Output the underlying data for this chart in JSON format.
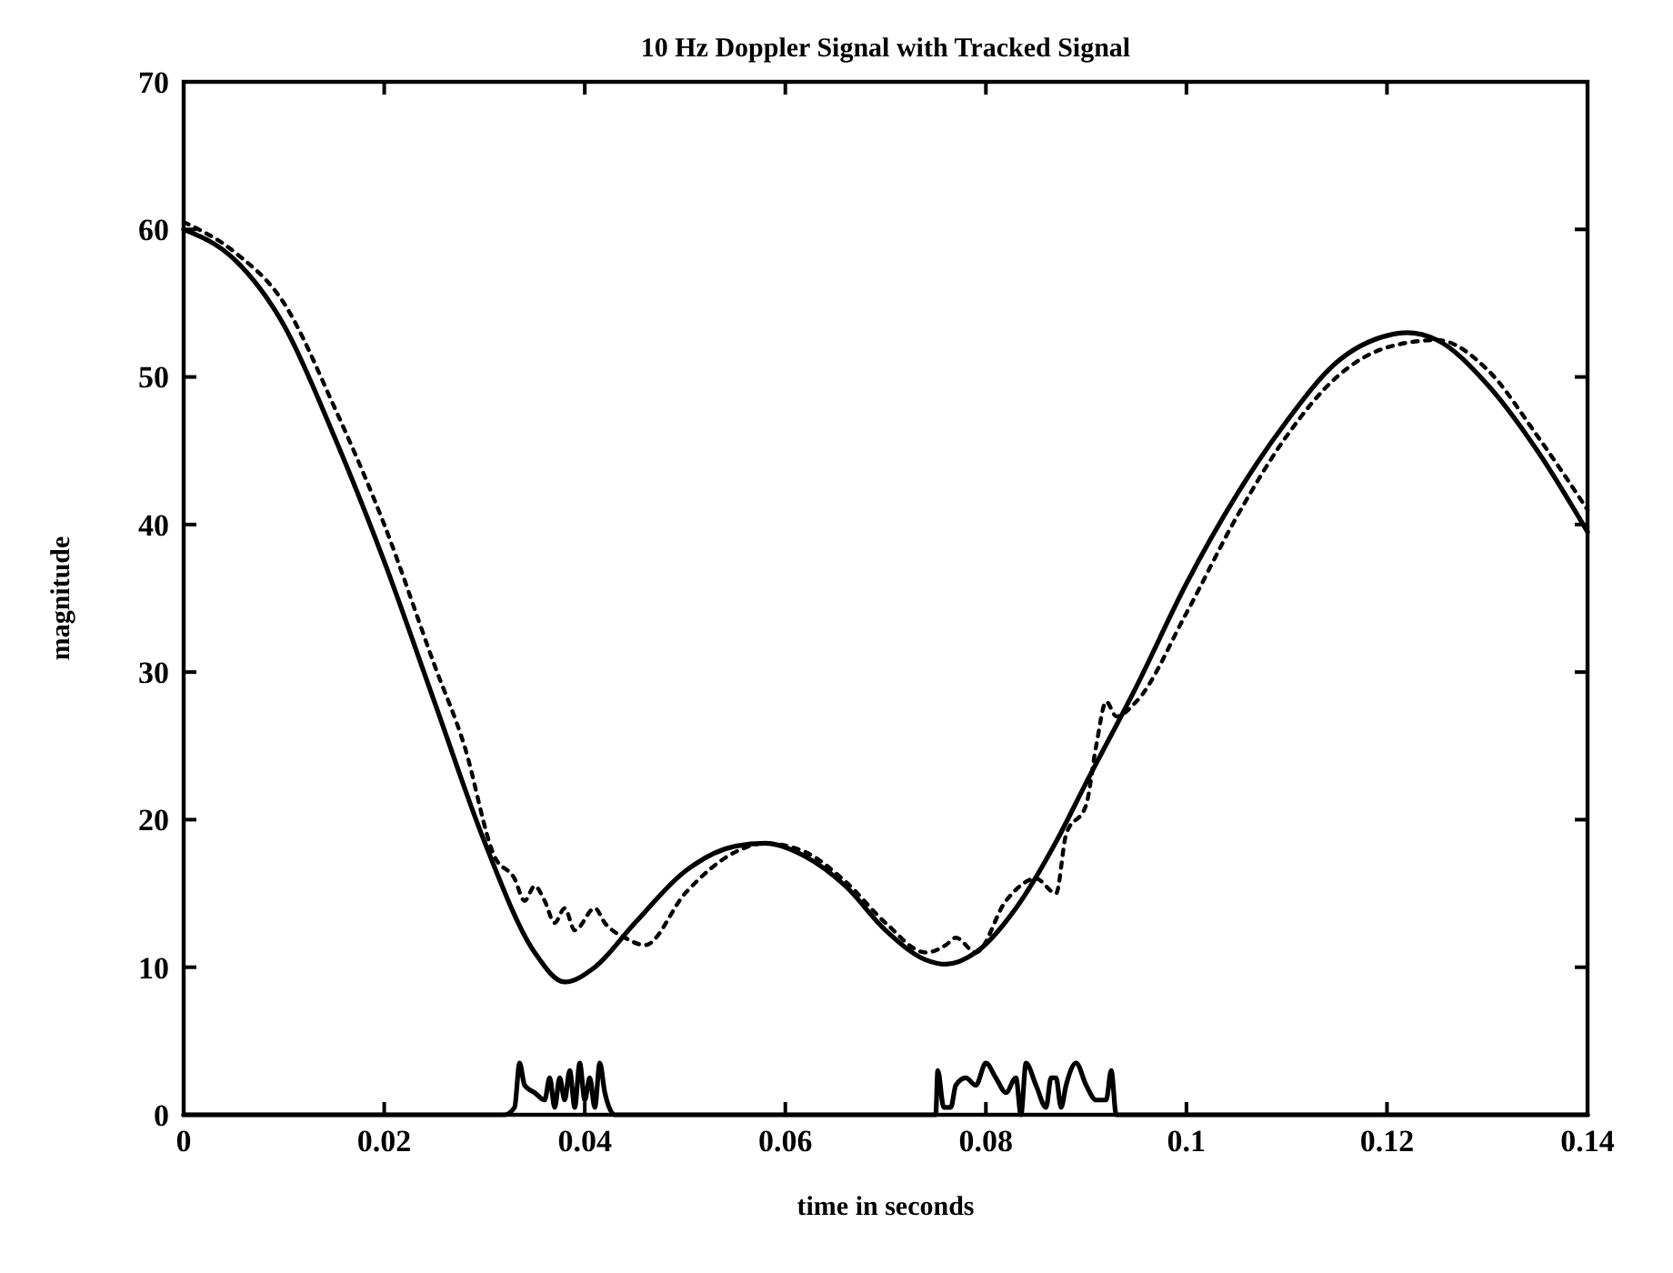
{
  "chart_data": {
    "type": "line",
    "title": "10 Hz Doppler Signal with Tracked Signal",
    "xlabel": "time in seconds",
    "ylabel": "magnitude",
    "xlim": [
      0,
      0.14
    ],
    "xticks": [
      0,
      0.02,
      0.04,
      0.06,
      0.08,
      0.1,
      0.12,
      0.14
    ],
    "ylim": [
      0,
      70
    ],
    "yticks": [
      0,
      10,
      20,
      30,
      40,
      50,
      60,
      70
    ],
    "series": [
      {
        "color": "#000000",
        "line_style": "solid",
        "x": [
          0,
          0.005,
          0.01,
          0.015,
          0.02,
          0.025,
          0.03,
          0.035,
          0.038,
          0.041,
          0.045,
          0.05,
          0.055,
          0.058,
          0.062,
          0.066,
          0.07,
          0.074,
          0.076,
          0.079,
          0.083,
          0.087,
          0.09,
          0.095,
          0.1,
          0.105,
          0.11,
          0.115,
          0.12,
          0.122,
          0.125,
          0.13,
          0.135,
          0.14
        ],
        "values": [
          60,
          58,
          53.5,
          46,
          37.5,
          28,
          18.5,
          11,
          9,
          10,
          13,
          16.5,
          18.2,
          18.4,
          17.5,
          15.5,
          12.5,
          10.5,
          10.2,
          11,
          14,
          18.5,
          22.5,
          29,
          36,
          42,
          47,
          51,
          52.8,
          53,
          52.5,
          49.5,
          45,
          39.5
        ]
      },
      {
        "color": "#000000",
        "line_style": "dotted",
        "x": [
          0,
          0.005,
          0.01,
          0.015,
          0.02,
          0.025,
          0.028,
          0.031,
          0.033,
          0.034,
          0.035,
          0.036,
          0.037,
          0.038,
          0.039,
          0.041,
          0.042,
          0.044,
          0.046,
          0.05,
          0.055,
          0.058,
          0.062,
          0.066,
          0.07,
          0.074,
          0.076,
          0.077,
          0.079,
          0.082,
          0.085,
          0.087,
          0.088,
          0.09,
          0.091,
          0.092,
          0.093,
          0.095,
          0.1,
          0.105,
          0.11,
          0.115,
          0.12,
          0.125,
          0.13,
          0.135,
          0.14
        ],
        "values": [
          60.5,
          58.5,
          55,
          48,
          40,
          30.5,
          25,
          17.5,
          16,
          14.5,
          15.5,
          14.5,
          13,
          14,
          12.5,
          14,
          13,
          12,
          11.5,
          15,
          17.8,
          18.4,
          17.8,
          15.8,
          13,
          11,
          11.5,
          12,
          11,
          14.5,
          16,
          15,
          19,
          21,
          25,
          28,
          27,
          28,
          34,
          40.5,
          46,
          50,
          52,
          52.5,
          50.5,
          46,
          41
        ]
      },
      {
        "color": "#000000",
        "line_style": "solid",
        "x": [
          0,
          0.032,
          0.033,
          0.0335,
          0.034,
          0.035,
          0.036,
          0.0365,
          0.037,
          0.0375,
          0.038,
          0.0385,
          0.039,
          0.0395,
          0.04,
          0.0405,
          0.041,
          0.0415,
          0.042,
          0.043,
          0.075,
          0.0752,
          0.0758,
          0.0765,
          0.077,
          0.078,
          0.079,
          0.08,
          0.081,
          0.082,
          0.083,
          0.0835,
          0.084,
          0.085,
          0.086,
          0.0865,
          0.087,
          0.0875,
          0.088,
          0.089,
          0.09,
          0.091,
          0.092,
          0.0925,
          0.093,
          0.14
        ],
        "values": [
          0,
          0,
          0.5,
          3.5,
          2,
          1.5,
          1,
          2.5,
          0.5,
          2.5,
          1,
          3,
          0.5,
          3.5,
          1,
          2.5,
          0.5,
          3.5,
          1.5,
          0,
          0,
          3,
          0.5,
          0.5,
          2,
          2.5,
          2,
          3.5,
          2.5,
          1.5,
          2.5,
          0,
          3.5,
          2,
          0.5,
          2.5,
          2.5,
          0.5,
          2,
          3.5,
          2,
          1,
          1,
          3,
          0,
          0
        ]
      }
    ]
  }
}
